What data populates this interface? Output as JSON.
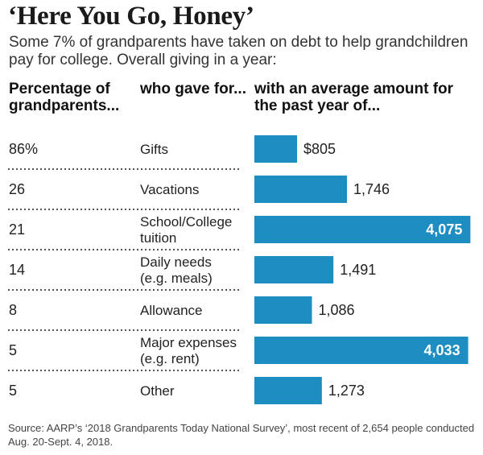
{
  "header": {
    "title": "‘Here You Go, Honey’",
    "subtitle": "Some 7% of grandparents have taken on debt to help grandchildren pay for college. Overall giving in a year:",
    "col_pct": "Percentage of grandparents...",
    "col_cat": "who gave for...",
    "col_amt": "with an average amount for the past year of..."
  },
  "chart_data": {
    "type": "bar",
    "orientation": "horizontal",
    "categories": [
      [
        "Gifts"
      ],
      [
        "Vacations"
      ],
      [
        "School/College",
        "tuition"
      ],
      [
        "Daily needs",
        "(e.g. meals)"
      ],
      [
        "Allowance"
      ],
      [
        "Major expenses",
        "(e.g. rent)"
      ],
      [
        "Other"
      ]
    ],
    "percent_labels": [
      "86%",
      "26",
      "21",
      "14",
      "8",
      "5",
      "5"
    ],
    "values": [
      805,
      1746,
      4075,
      1491,
      1086,
      4033,
      1273
    ],
    "value_labels": [
      "$805",
      "1,746",
      "4,075",
      "1,491",
      "1,086",
      "4,033",
      "1,273"
    ],
    "xlim": [
      0,
      4100
    ],
    "bar_color": "#1d8dc2",
    "separator_color": "#555555"
  },
  "footer": {
    "source": "Source: AARP’s ‘2018 Grandparents Today National Survey’, most recent of 2,654 people conducted Aug. 20-Sept. 4, 2018."
  }
}
